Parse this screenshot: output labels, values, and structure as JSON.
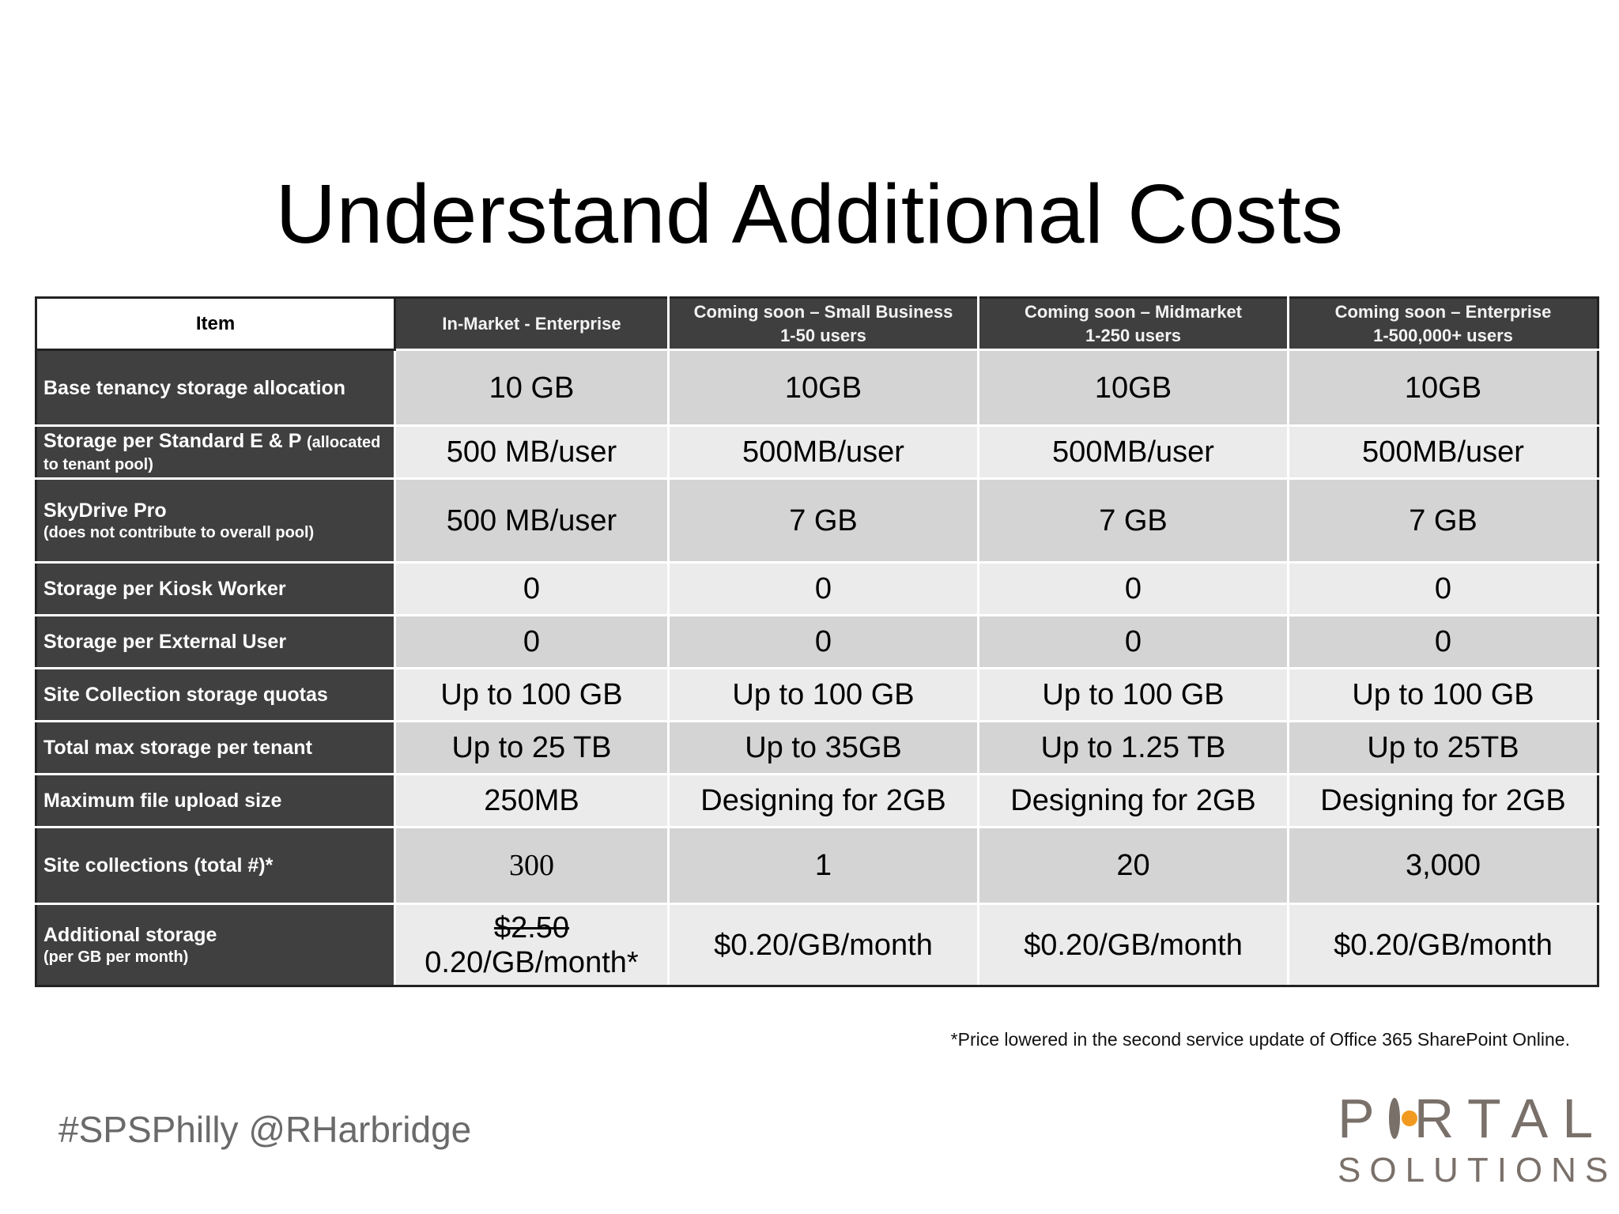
{
  "title": "Understand Additional Costs",
  "table": {
    "item_header": "Item",
    "columns": [
      {
        "line1": "In-Market - Enterprise",
        "line2": ""
      },
      {
        "line1": "Coming soon – Small Business",
        "line2": "1-50 users"
      },
      {
        "line1": "Coming soon – Midmarket",
        "line2": "1-250 users"
      },
      {
        "line1": "Coming soon – Enterprise",
        "line2": "1-500,000+ users"
      }
    ],
    "rows": [
      {
        "label": "Base tenancy storage allocation",
        "values": [
          "10 GB",
          "10GB",
          "10GB",
          "10GB"
        ]
      },
      {
        "label": "Storage per Standard E & P",
        "label_small": "(allocated",
        "sub": "to tenant pool)",
        "values": [
          "500 MB/user",
          "500MB/user",
          "500MB/user",
          "500MB/user"
        ]
      },
      {
        "label": "SkyDrive Pro",
        "sub": "(does not contribute to overall pool)",
        "values": [
          "500 MB/user",
          "7 GB",
          "7 GB",
          "7 GB"
        ]
      },
      {
        "label": "Storage per Kiosk Worker",
        "values": [
          "0",
          "0",
          "0",
          "0"
        ]
      },
      {
        "label": "Storage per External User",
        "values": [
          "0",
          "0",
          "0",
          "0"
        ]
      },
      {
        "label": "Site Collection storage quotas",
        "values": [
          "Up to 100 GB",
          "Up to 100 GB",
          "Up to 100 GB",
          "Up to 100 GB"
        ]
      },
      {
        "label": "Total max storage per tenant",
        "values": [
          "Up to 25 TB",
          "Up to 35GB",
          "Up to 1.25 TB",
          "Up to 25TB"
        ]
      },
      {
        "label": "Maximum file upload size",
        "values": [
          "250MB",
          "Designing for 2GB",
          "Designing for 2GB",
          "Designing for 2GB"
        ]
      },
      {
        "label": "Site collections (total #)*",
        "values": [
          "300",
          "1",
          "20",
          "3,000"
        ]
      },
      {
        "label": "Additional storage",
        "sub": "(per GB per month)",
        "values": [
          "$0.20/GB/month",
          "$0.20/GB/month",
          "$0.20/GB/month"
        ],
        "first_value_struck": "$2.50",
        "first_value_line2": "0.20/GB/month*"
      }
    ]
  },
  "footnote": "*Price lowered in the second service update of Office 365 SharePoint Online.",
  "hashtag": "#SPSPhilly @RHarbridge",
  "logo": {
    "top_p": "P",
    "top_rest": "RTAL",
    "bottom": "SOLUTIONS",
    "accent": "#f29a1f"
  }
}
